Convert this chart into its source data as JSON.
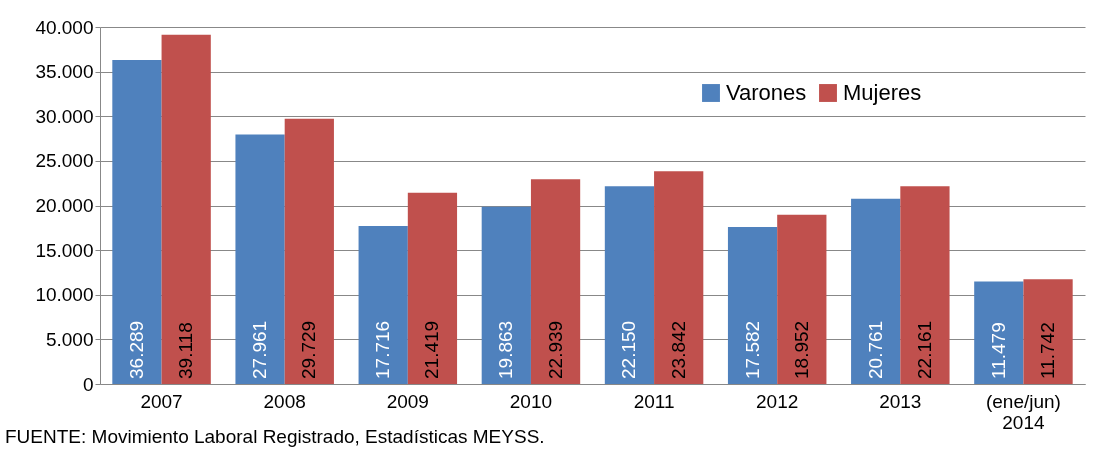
{
  "chart_data": {
    "type": "bar",
    "categories": [
      "2007",
      "2008",
      "2009",
      "2010",
      "2011",
      "2012",
      "2013",
      "(ene/jun) 2014"
    ],
    "series": [
      {
        "name": "Varones",
        "color": "#4f81bd",
        "values": [
          36289,
          27961,
          17716,
          19863,
          22150,
          17582,
          20761,
          11479
        ],
        "value_labels": [
          "36.289",
          "27.961",
          "17.716",
          "19.863",
          "22.150",
          "17.582",
          "20.761",
          "11.479"
        ]
      },
      {
        "name": "Mujeres",
        "color": "#c0504d",
        "values": [
          39118,
          29729,
          21419,
          22939,
          23842,
          18952,
          22161,
          11742
        ],
        "value_labels": [
          "39.118",
          "29.729",
          "21.419",
          "22.939",
          "23.842",
          "18.952",
          "22.161",
          "11.742"
        ]
      }
    ],
    "ylim": [
      0,
      40000
    ],
    "yticks": [
      {
        "value": 0,
        "label": "0"
      },
      {
        "value": 5000,
        "label": "5.000"
      },
      {
        "value": 10000,
        "label": "10.000"
      },
      {
        "value": 15000,
        "label": "15.000"
      },
      {
        "value": 20000,
        "label": "20.000"
      },
      {
        "value": 25000,
        "label": "25.000"
      },
      {
        "value": 30000,
        "label": "30.000"
      },
      {
        "value": 35000,
        "label": "35.000"
      },
      {
        "value": 40000,
        "label": "40.000"
      }
    ],
    "grid": "y",
    "legend": "top right",
    "annotations": [
      "FUENTE: Movimiento Laboral Registrado, Estadísticas MEYSS."
    ]
  }
}
